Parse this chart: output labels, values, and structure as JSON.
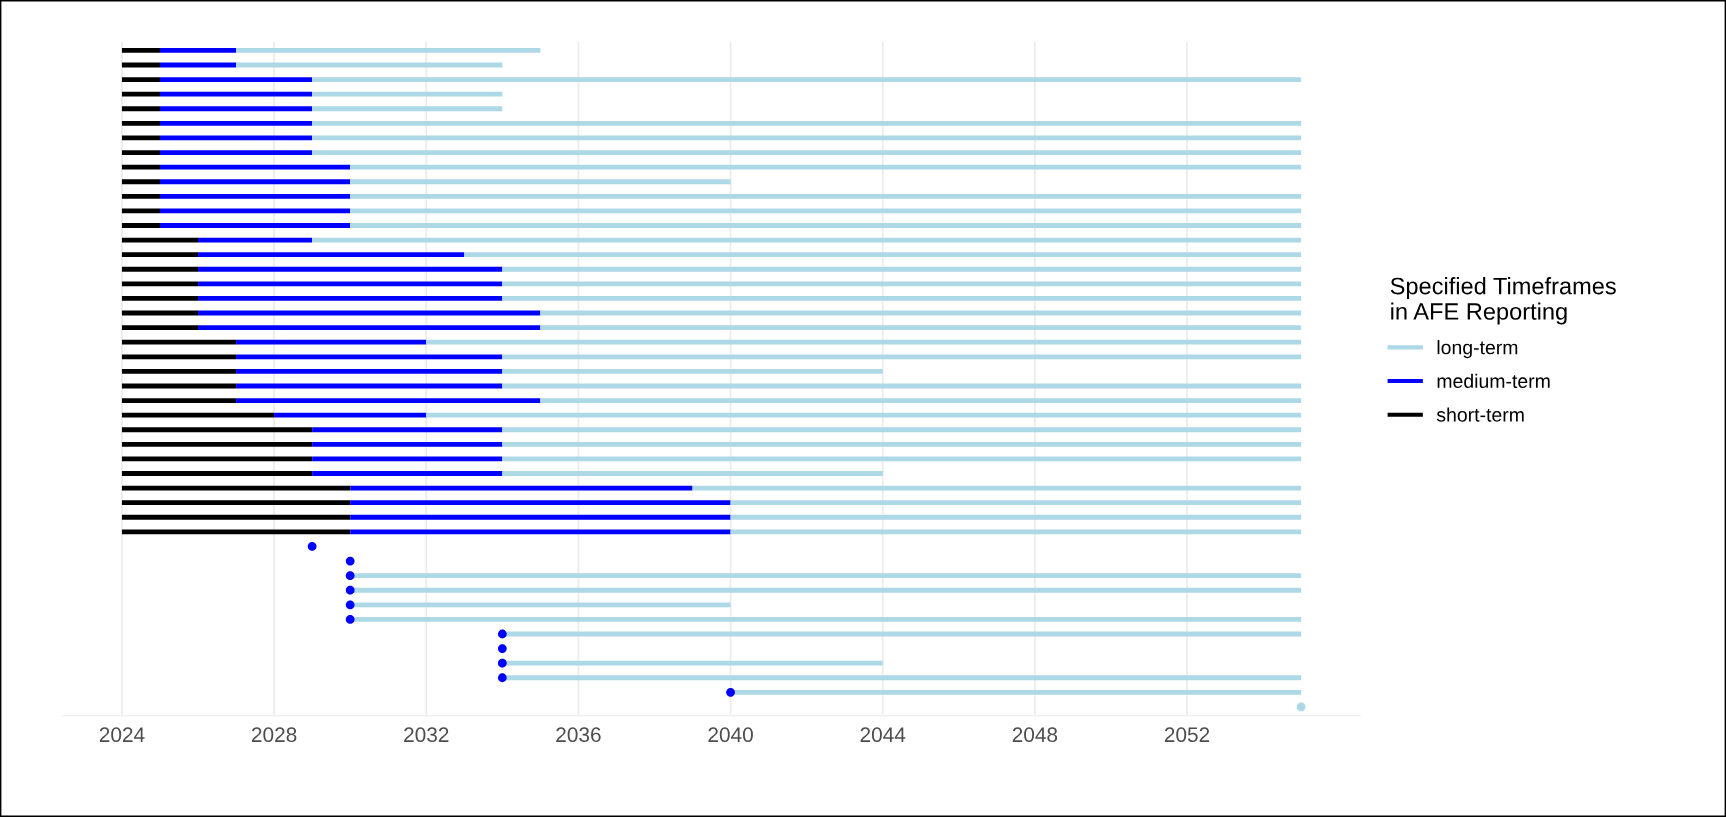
{
  "chart_data": {
    "type": "bar",
    "orientation": "horizontal",
    "legend_title": "Specified Timeframes\nin AFE Reporting",
    "legend": "right",
    "grid": "x",
    "tick_labels": "x",
    "xlim": [
      2022.45,
      2056.55
    ],
    "xticks": [
      2024,
      2028,
      2032,
      2036,
      2040,
      2044,
      2048,
      2052
    ],
    "categories": [
      null,
      null,
      null,
      null,
      null,
      null,
      null,
      null,
      null,
      null,
      null,
      null,
      null,
      null,
      null,
      null,
      null,
      null,
      null,
      null,
      null,
      null,
      null,
      null,
      null,
      null,
      null,
      null,
      null,
      null,
      null,
      null,
      null,
      null,
      null,
      null,
      null,
      null,
      null,
      null,
      null,
      null,
      null,
      null,
      null,
      null
    ],
    "series": [
      {
        "name": "short-term",
        "color": "#000000",
        "base": [
          2024,
          2024,
          2024,
          2024,
          2024,
          2024,
          2024,
          2024,
          2024,
          2024,
          2024,
          2024,
          2024,
          2024,
          2024,
          2024,
          2024,
          2024,
          2024,
          2024,
          2024,
          2024,
          2024,
          2024,
          2024,
          2024,
          2024,
          2024,
          2024,
          2024,
          2024,
          2024,
          2024,
          2024,
          null,
          null,
          null,
          null,
          null,
          null,
          null,
          null,
          null,
          null,
          null,
          null
        ],
        "values": [
          1,
          1,
          1,
          1,
          1,
          1,
          1,
          1,
          1,
          1,
          1,
          1,
          1,
          2,
          2,
          2,
          2,
          2,
          2,
          2,
          3,
          3,
          3,
          3,
          3,
          4,
          5,
          5,
          5,
          5,
          6,
          6,
          6,
          6,
          null,
          null,
          null,
          null,
          null,
          null,
          null,
          null,
          null,
          null,
          null,
          null
        ]
      },
      {
        "name": "medium-term",
        "color": "#0000ff",
        "base": [
          2025,
          2025,
          2025,
          2025,
          2025,
          2025,
          2025,
          2025,
          2025,
          2025,
          2025,
          2025,
          2025,
          2026,
          2026,
          2026,
          2026,
          2026,
          2026,
          2026,
          2027,
          2027,
          2027,
          2027,
          2027,
          2028,
          2029,
          2029,
          2029,
          2029,
          2030,
          2030,
          2030,
          2030,
          null,
          null,
          null,
          null,
          null,
          null,
          null,
          null,
          null,
          null,
          null,
          null
        ],
        "values": [
          2,
          2,
          4,
          4,
          4,
          4,
          4,
          4,
          5,
          5,
          5,
          5,
          5,
          3,
          7,
          8,
          8,
          8,
          9,
          9,
          5,
          7,
          7,
          7,
          8,
          4,
          5,
          5,
          5,
          5,
          9,
          10,
          10,
          10,
          null,
          null,
          null,
          null,
          null,
          null,
          null,
          null,
          null,
          null,
          null,
          null
        ]
      },
      {
        "name": "long-term",
        "color": "#add8e6",
        "base": [
          2027,
          2027,
          2029,
          2029,
          2029,
          2029,
          2029,
          2029,
          2030,
          2030,
          2030,
          2030,
          2030,
          2029,
          2033,
          2034,
          2034,
          2034,
          2035,
          2035,
          2032,
          2034,
          2034,
          2034,
          2035,
          2032,
          2034,
          2034,
          2034,
          2034,
          2039,
          2040,
          2040,
          2040,
          null,
          null,
          2030,
          2030,
          2030,
          2030,
          2034,
          null,
          2034,
          2034,
          2040,
          null
        ],
        "values": [
          8,
          7,
          26,
          5,
          5,
          26,
          26,
          26,
          25,
          10,
          25,
          25,
          25,
          26,
          22,
          21,
          21,
          21,
          20,
          20,
          23,
          21,
          10,
          21,
          20,
          23,
          21,
          21,
          21,
          10,
          16,
          15,
          15,
          15,
          null,
          null,
          25,
          25,
          10,
          25,
          21,
          null,
          10,
          21,
          15,
          null
        ]
      },
      {
        "type": "scatter",
        "color": "#0000ff",
        "values": [
          null,
          null,
          null,
          null,
          null,
          null,
          null,
          null,
          null,
          null,
          null,
          null,
          null,
          null,
          null,
          null,
          null,
          null,
          null,
          null,
          null,
          null,
          null,
          null,
          null,
          null,
          null,
          null,
          null,
          null,
          null,
          null,
          null,
          null,
          2029,
          2030,
          2030,
          2030,
          2030,
          2030,
          2034,
          2034,
          2034,
          2034,
          2040,
          null
        ]
      },
      {
        "type": "scatter",
        "color": "#add8e6",
        "values": [
          null,
          null,
          null,
          null,
          null,
          null,
          null,
          null,
          null,
          null,
          null,
          null,
          null,
          null,
          null,
          null,
          null,
          null,
          null,
          null,
          null,
          null,
          null,
          null,
          null,
          null,
          null,
          null,
          null,
          null,
          null,
          null,
          null,
          null,
          null,
          null,
          null,
          null,
          null,
          null,
          null,
          null,
          null,
          null,
          null,
          2055
        ]
      }
    ]
  }
}
